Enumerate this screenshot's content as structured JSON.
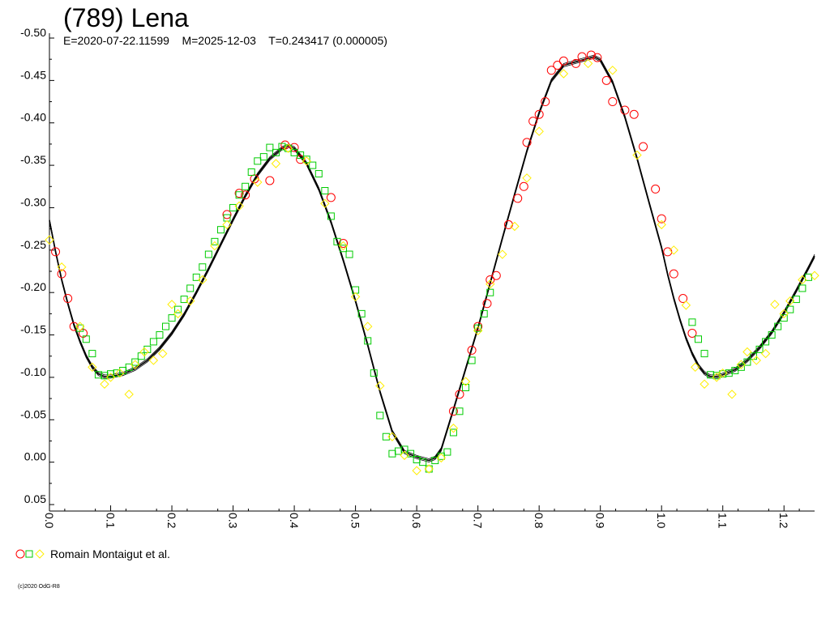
{
  "chart_data": {
    "type": "scatter",
    "title": "(789) Lena",
    "subtitle": "E=2020-07-22.11599    M=2025-12-03    T=0.243417 (0.000005)",
    "xlabel": "",
    "ylabel": "",
    "xlim": [
      0.0,
      1.25
    ],
    "ylim": [
      0.05,
      -0.5
    ],
    "y_inverted": true,
    "x_ticks": [
      "0.0",
      "0.1",
      "0.2",
      "0.3",
      "0.4",
      "0.5",
      "0.6",
      "0.7",
      "0.8",
      "0.9",
      "1.0",
      "1.1",
      "1.2"
    ],
    "y_ticks": [
      "-0.50",
      "-0.45",
      "-0.40",
      "-0.35",
      "-0.30",
      "-0.25",
      "-0.20",
      "-0.15",
      "-0.10",
      "-0.05",
      "0.00",
      "0.05"
    ],
    "grid": false,
    "legend": {
      "placement": "bottom-left",
      "label": "Romain Montaigut et al."
    },
    "colors": {
      "fit": "#000000",
      "series_red": "#ff0000",
      "series_green": "#00cc00",
      "series_yellow": "#ffee00"
    },
    "fit_curve": {
      "x": [
        0.0,
        0.01,
        0.02,
        0.03,
        0.04,
        0.05,
        0.06,
        0.07,
        0.08,
        0.09,
        0.1,
        0.12,
        0.14,
        0.16,
        0.18,
        0.2,
        0.22,
        0.24,
        0.26,
        0.28,
        0.3,
        0.32,
        0.34,
        0.36,
        0.38,
        0.39,
        0.4,
        0.42,
        0.44,
        0.46,
        0.48,
        0.5,
        0.52,
        0.54,
        0.56,
        0.58,
        0.6,
        0.62,
        0.63,
        0.64,
        0.66,
        0.68,
        0.7,
        0.72,
        0.74,
        0.76,
        0.78,
        0.8,
        0.82,
        0.84,
        0.86,
        0.88,
        0.89,
        0.9,
        0.92,
        0.94,
        0.96,
        0.98,
        1.0,
        1.01,
        1.02,
        1.03,
        1.04,
        1.05,
        1.06,
        1.07,
        1.08,
        1.09,
        1.1,
        1.12,
        1.14,
        1.16,
        1.18,
        1.2,
        1.22,
        1.24,
        1.25
      ],
      "y": [
        -0.285,
        -0.248,
        -0.215,
        -0.187,
        -0.162,
        -0.142,
        -0.125,
        -0.112,
        -0.104,
        -0.101,
        -0.101,
        -0.104,
        -0.11,
        -0.12,
        -0.134,
        -0.152,
        -0.174,
        -0.2,
        -0.228,
        -0.257,
        -0.286,
        -0.314,
        -0.339,
        -0.358,
        -0.37,
        -0.373,
        -0.37,
        -0.352,
        -0.322,
        -0.283,
        -0.238,
        -0.19,
        -0.138,
        -0.083,
        -0.036,
        -0.012,
        -0.006,
        -0.002,
        -0.005,
        -0.015,
        -0.062,
        -0.11,
        -0.158,
        -0.211,
        -0.264,
        -0.316,
        -0.367,
        -0.412,
        -0.45,
        -0.468,
        -0.472,
        -0.476,
        -0.478,
        -0.474,
        -0.448,
        -0.407,
        -0.358,
        -0.305,
        -0.253,
        -0.221,
        -0.193,
        -0.168,
        -0.146,
        -0.128,
        -0.114,
        -0.105,
        -0.101,
        -0.101,
        -0.103,
        -0.109,
        -0.12,
        -0.135,
        -0.153,
        -0.176,
        -0.202,
        -0.229,
        -0.243
      ]
    },
    "series": [
      {
        "marker": "circle",
        "color": "#ff0000",
        "x": [
          0.01,
          0.02,
          0.03,
          0.04,
          0.055,
          0.29,
          0.31,
          0.32,
          0.335,
          0.36,
          0.385,
          0.4,
          0.41,
          0.46,
          0.48,
          0.66,
          0.67,
          0.69,
          0.7,
          0.715,
          0.72,
          0.73,
          0.75,
          0.765,
          0.775,
          0.78,
          0.79,
          0.8,
          0.81,
          0.82,
          0.83,
          0.84,
          0.86,
          0.87,
          0.885,
          0.895,
          0.91,
          0.92,
          0.94,
          0.955,
          0.97,
          0.99,
          1.0,
          1.01,
          1.02,
          1.035,
          1.05
        ],
        "y": [
          -0.248,
          -0.222,
          -0.193,
          -0.16,
          -0.152,
          -0.292,
          -0.317,
          -0.315,
          -0.334,
          -0.332,
          -0.374,
          -0.371,
          -0.357,
          -0.312,
          -0.258,
          -0.06,
          -0.08,
          -0.132,
          -0.16,
          -0.187,
          -0.215,
          -0.22,
          -0.28,
          -0.311,
          -0.325,
          -0.377,
          -0.402,
          -0.41,
          -0.425,
          -0.462,
          -0.468,
          -0.473,
          -0.47,
          -0.478,
          -0.48,
          -0.477,
          -0.45,
          -0.425,
          -0.415,
          -0.41,
          -0.372,
          -0.322,
          -0.287,
          -0.248,
          -0.222,
          -0.193,
          -0.152
        ]
      },
      {
        "marker": "square",
        "color": "#00cc00",
        "x": [
          0.05,
          0.06,
          0.07,
          0.08,
          0.09,
          0.1,
          0.11,
          0.12,
          0.13,
          0.14,
          0.15,
          0.16,
          0.17,
          0.18,
          0.19,
          0.2,
          0.21,
          0.22,
          0.23,
          0.24,
          0.25,
          0.26,
          0.27,
          0.28,
          0.29,
          0.3,
          0.31,
          0.32,
          0.33,
          0.34,
          0.35,
          0.36,
          0.37,
          0.38,
          0.39,
          0.4,
          0.41,
          0.42,
          0.43,
          0.44,
          0.45,
          0.46,
          0.47,
          0.48,
          0.49,
          0.5,
          0.51,
          0.52,
          0.53,
          0.54,
          0.55,
          0.56,
          0.57,
          0.58,
          0.59,
          0.6,
          0.61,
          0.62,
          0.63,
          0.64,
          0.65,
          0.66,
          0.67,
          0.68,
          0.69,
          0.7,
          0.71,
          0.72,
          1.05,
          1.06,
          1.07,
          1.08,
          1.09,
          1.1,
          1.11,
          1.12,
          1.13,
          1.14,
          1.15,
          1.16,
          1.17,
          1.18,
          1.19,
          1.2,
          1.21,
          1.22,
          1.23,
          1.24
        ],
        "y": [
          -0.158,
          -0.145,
          -0.128,
          -0.103,
          -0.102,
          -0.104,
          -0.105,
          -0.108,
          -0.112,
          -0.118,
          -0.125,
          -0.133,
          -0.142,
          -0.15,
          -0.16,
          -0.17,
          -0.18,
          -0.192,
          -0.205,
          -0.218,
          -0.23,
          -0.245,
          -0.26,
          -0.274,
          -0.288,
          -0.3,
          -0.315,
          -0.325,
          -0.342,
          -0.355,
          -0.36,
          -0.371,
          -0.365,
          -0.372,
          -0.37,
          -0.365,
          -0.362,
          -0.357,
          -0.35,
          -0.34,
          -0.32,
          -0.29,
          -0.26,
          -0.252,
          -0.245,
          -0.203,
          -0.175,
          -0.143,
          -0.105,
          -0.055,
          -0.03,
          -0.01,
          -0.013,
          -0.015,
          -0.01,
          -0.003,
          0.0,
          0.008,
          -0.002,
          -0.007,
          -0.012,
          -0.035,
          -0.06,
          -0.088,
          -0.12,
          -0.158,
          -0.175,
          -0.2,
          -0.165,
          -0.145,
          -0.128,
          -0.103,
          -0.102,
          -0.104,
          -0.105,
          -0.108,
          -0.112,
          -0.118,
          -0.125,
          -0.133,
          -0.142,
          -0.15,
          -0.16,
          -0.17,
          -0.18,
          -0.192,
          -0.205,
          -0.218
        ]
      },
      {
        "marker": "diamond",
        "color": "#ffee00",
        "x": [
          0.0,
          0.02,
          0.05,
          0.07,
          0.09,
          0.1,
          0.115,
          0.13,
          0.14,
          0.155,
          0.17,
          0.185,
          0.2,
          0.21,
          0.23,
          0.25,
          0.27,
          0.29,
          0.31,
          0.34,
          0.37,
          0.39,
          0.42,
          0.45,
          0.48,
          0.5,
          0.52,
          0.54,
          0.56,
          0.58,
          0.6,
          0.62,
          0.64,
          0.66,
          0.68,
          0.7,
          0.72,
          0.74,
          0.76,
          0.78,
          0.8,
          0.84,
          0.88,
          0.92,
          0.96,
          1.0,
          1.02,
          1.04,
          1.055,
          1.07,
          1.09,
          1.1,
          1.115,
          1.13,
          1.14,
          1.155,
          1.17,
          1.185,
          1.2,
          1.21,
          1.23,
          1.25
        ],
        "y": [
          -0.262,
          -0.23,
          -0.16,
          -0.112,
          -0.092,
          -0.1,
          -0.105,
          -0.08,
          -0.115,
          -0.13,
          -0.12,
          -0.128,
          -0.186,
          -0.175,
          -0.19,
          -0.215,
          -0.255,
          -0.28,
          -0.302,
          -0.33,
          -0.352,
          -0.37,
          -0.355,
          -0.305,
          -0.255,
          -0.195,
          -0.16,
          -0.09,
          -0.03,
          -0.008,
          0.01,
          0.008,
          -0.005,
          -0.04,
          -0.095,
          -0.155,
          -0.21,
          -0.245,
          -0.278,
          -0.335,
          -0.39,
          -0.458,
          -0.47,
          -0.462,
          -0.362,
          -0.28,
          -0.25,
          -0.185,
          -0.112,
          -0.092,
          -0.1,
          -0.105,
          -0.08,
          -0.115,
          -0.13,
          -0.12,
          -0.128,
          -0.186,
          -0.175,
          -0.19,
          -0.215,
          -0.22
        ]
      }
    ]
  },
  "copyright": "(c)2020 OdG-R8"
}
